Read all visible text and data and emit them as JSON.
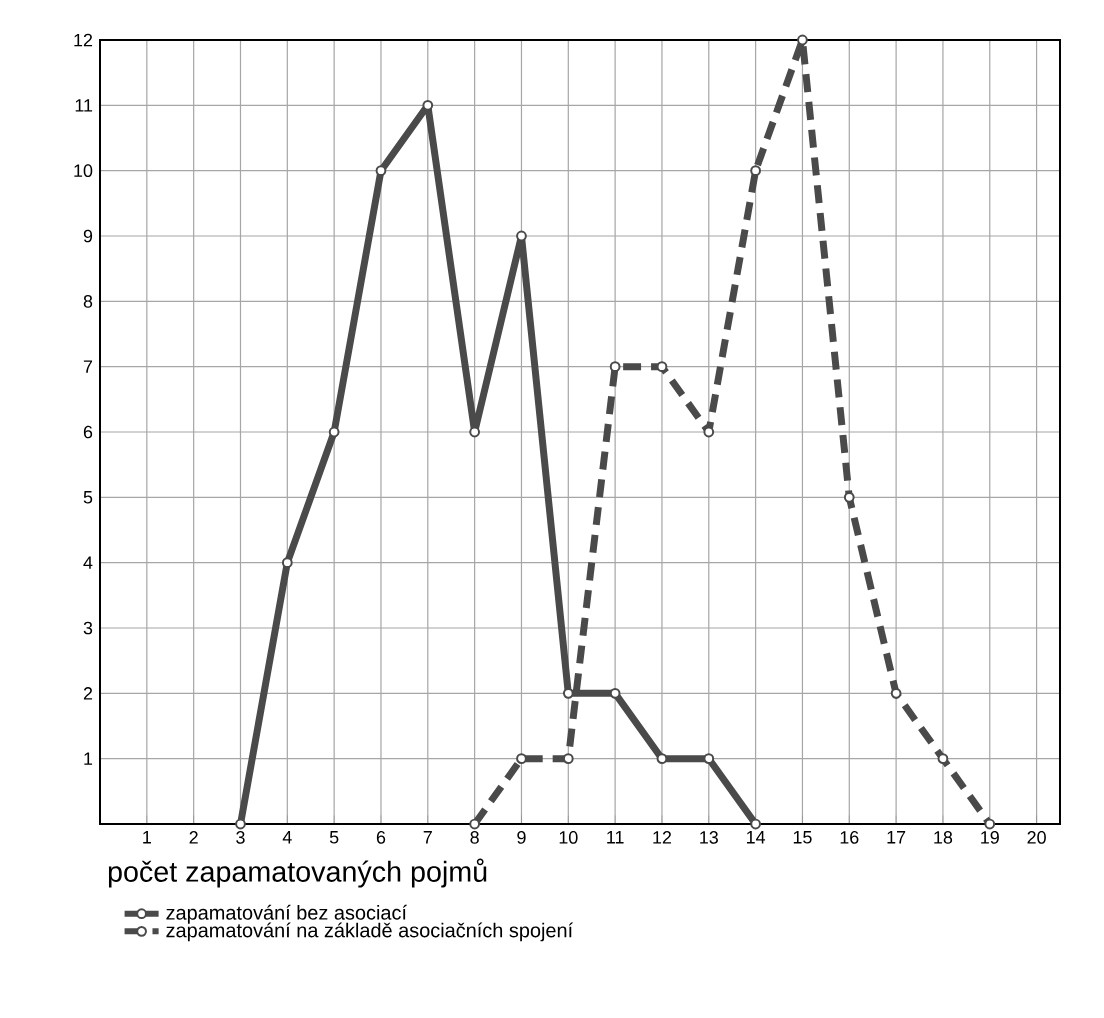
{
  "chart_data": {
    "type": "line",
    "xlabel": "počet zapamatovaných pojmů",
    "x": [
      3,
      4,
      5,
      6,
      7,
      8,
      9,
      10,
      11,
      12,
      13,
      14,
      15,
      16,
      17,
      18,
      19
    ],
    "series": [
      {
        "name": "zapamatování bez asociací",
        "color": "#4a4a4a",
        "line_style": "solid",
        "values": [
          0,
          4,
          6,
          10,
          11,
          6,
          9,
          2,
          2,
          1,
          1,
          0,
          null,
          null,
          null,
          null,
          null
        ]
      },
      {
        "name": "zapamatování na základě asociačních spojení",
        "color": "#4a4a4a",
        "line_style": "dashed",
        "values": [
          null,
          null,
          null,
          null,
          null,
          0,
          1,
          1,
          7,
          7,
          6,
          10,
          12,
          5,
          2,
          1,
          0
        ]
      }
    ],
    "xlim": [
      0,
      20.5
    ],
    "ylim": [
      0,
      12
    ],
    "xticks": [
      1,
      2,
      3,
      4,
      5,
      6,
      7,
      8,
      9,
      10,
      11,
      12,
      13,
      14,
      15,
      16,
      17,
      18,
      19,
      20
    ],
    "yticks": [
      1,
      2,
      3,
      4,
      5,
      6,
      7,
      8,
      9,
      10,
      11,
      12
    ],
    "grid": true,
    "marker": "circle",
    "legend": "bottom"
  }
}
